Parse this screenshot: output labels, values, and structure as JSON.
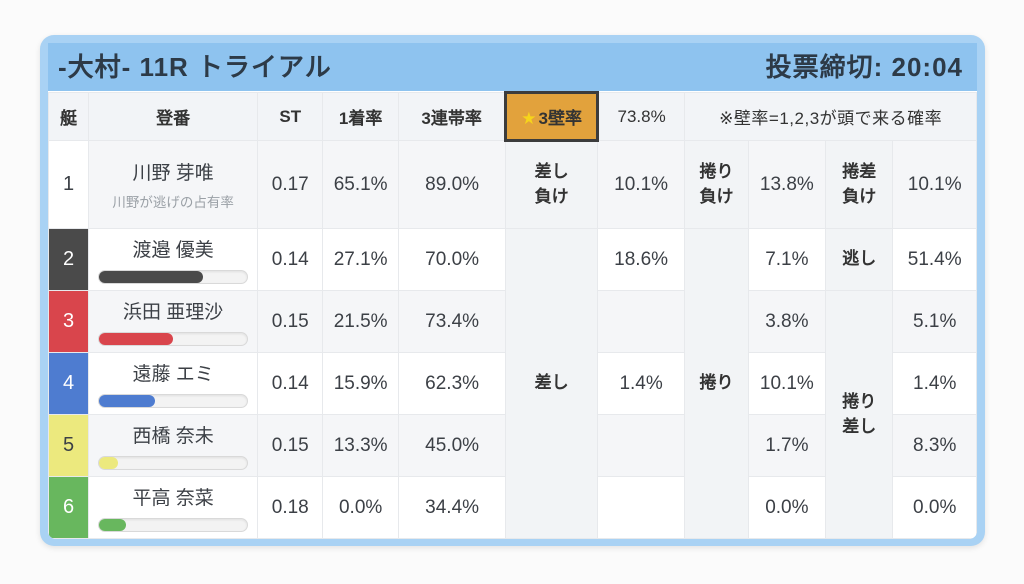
{
  "header": {
    "title": "-大村- 11R トライアル",
    "deadline": "投票締切: 20:04"
  },
  "colors": {
    "card_border": "#a9d2f4",
    "card_header": "#8ec3ef",
    "highlight_bg": "#e2a23c",
    "star": "#f6d41b"
  },
  "table": {
    "columns": {
      "boat": "艇",
      "entry": "登番",
      "st": "ST",
      "win1": "1着率",
      "top3": "3連帯率"
    },
    "highlight": {
      "star": "★",
      "label": "3壁率",
      "value": "73.8%",
      "note": "※壁率=1,2,3が頭で来る確率"
    },
    "wall_labels": {
      "sashi_lose": [
        "差し",
        "負け"
      ],
      "makuri_lose": [
        "捲り",
        "負け"
      ],
      "makurizashi_lose": [
        "捲差",
        "負け"
      ],
      "sashi": "差し",
      "makuri": "捲り",
      "nigashi": "逃し",
      "makurizashi": [
        "捲り",
        "差し"
      ]
    },
    "rows": [
      {
        "boat": "1",
        "name": "川野 芽唯",
        "subtitle": "川野が逃げの占有率",
        "st": "0.17",
        "win1": "65.1%",
        "top3": "89.0%",
        "sashi": "10.1%",
        "makuri": "13.8%",
        "makurizashi": "10.1%",
        "color": {
          "bg": "#ffffff",
          "text": "#3c4046"
        }
      },
      {
        "boat": "2",
        "name": "渡邉 優美",
        "bar": 70,
        "st": "0.14",
        "win1": "27.1%",
        "top3": "70.0%",
        "sashi": "18.6%",
        "makuri": "7.1%",
        "makurizashi": "51.4%",
        "color": {
          "bg": "#4a4a4a",
          "text": "#ffffff"
        }
      },
      {
        "boat": "3",
        "name": "浜田 亜理沙",
        "bar": 50,
        "st": "0.15",
        "win1": "21.5%",
        "top3": "73.4%",
        "sashi": "",
        "makuri": "3.8%",
        "makurizashi": "5.1%",
        "color": {
          "bg": "#d9454c",
          "text": "#ffffff"
        }
      },
      {
        "boat": "4",
        "name": "遠藤 エミ",
        "bar": 38,
        "st": "0.14",
        "win1": "15.9%",
        "top3": "62.3%",
        "sashi": "1.4%",
        "makuri": "10.1%",
        "makurizashi": "1.4%",
        "color": {
          "bg": "#4e7cd0",
          "text": "#ffffff"
        }
      },
      {
        "boat": "5",
        "name": "西橋 奈未",
        "bar": 13,
        "st": "0.15",
        "win1": "13.3%",
        "top3": "45.0%",
        "sashi": "",
        "makuri": "1.7%",
        "makurizashi": "8.3%",
        "color": {
          "bg": "#ece97e",
          "text": "#3c4046"
        }
      },
      {
        "boat": "6",
        "name": "平高 奈菜",
        "bar": 18,
        "st": "0.18",
        "win1": "0.0%",
        "top3": "34.4%",
        "sashi": "",
        "makuri": "0.0%",
        "makurizashi": "0.0%",
        "color": {
          "bg": "#68b75e",
          "text": "#ffffff"
        }
      }
    ]
  }
}
